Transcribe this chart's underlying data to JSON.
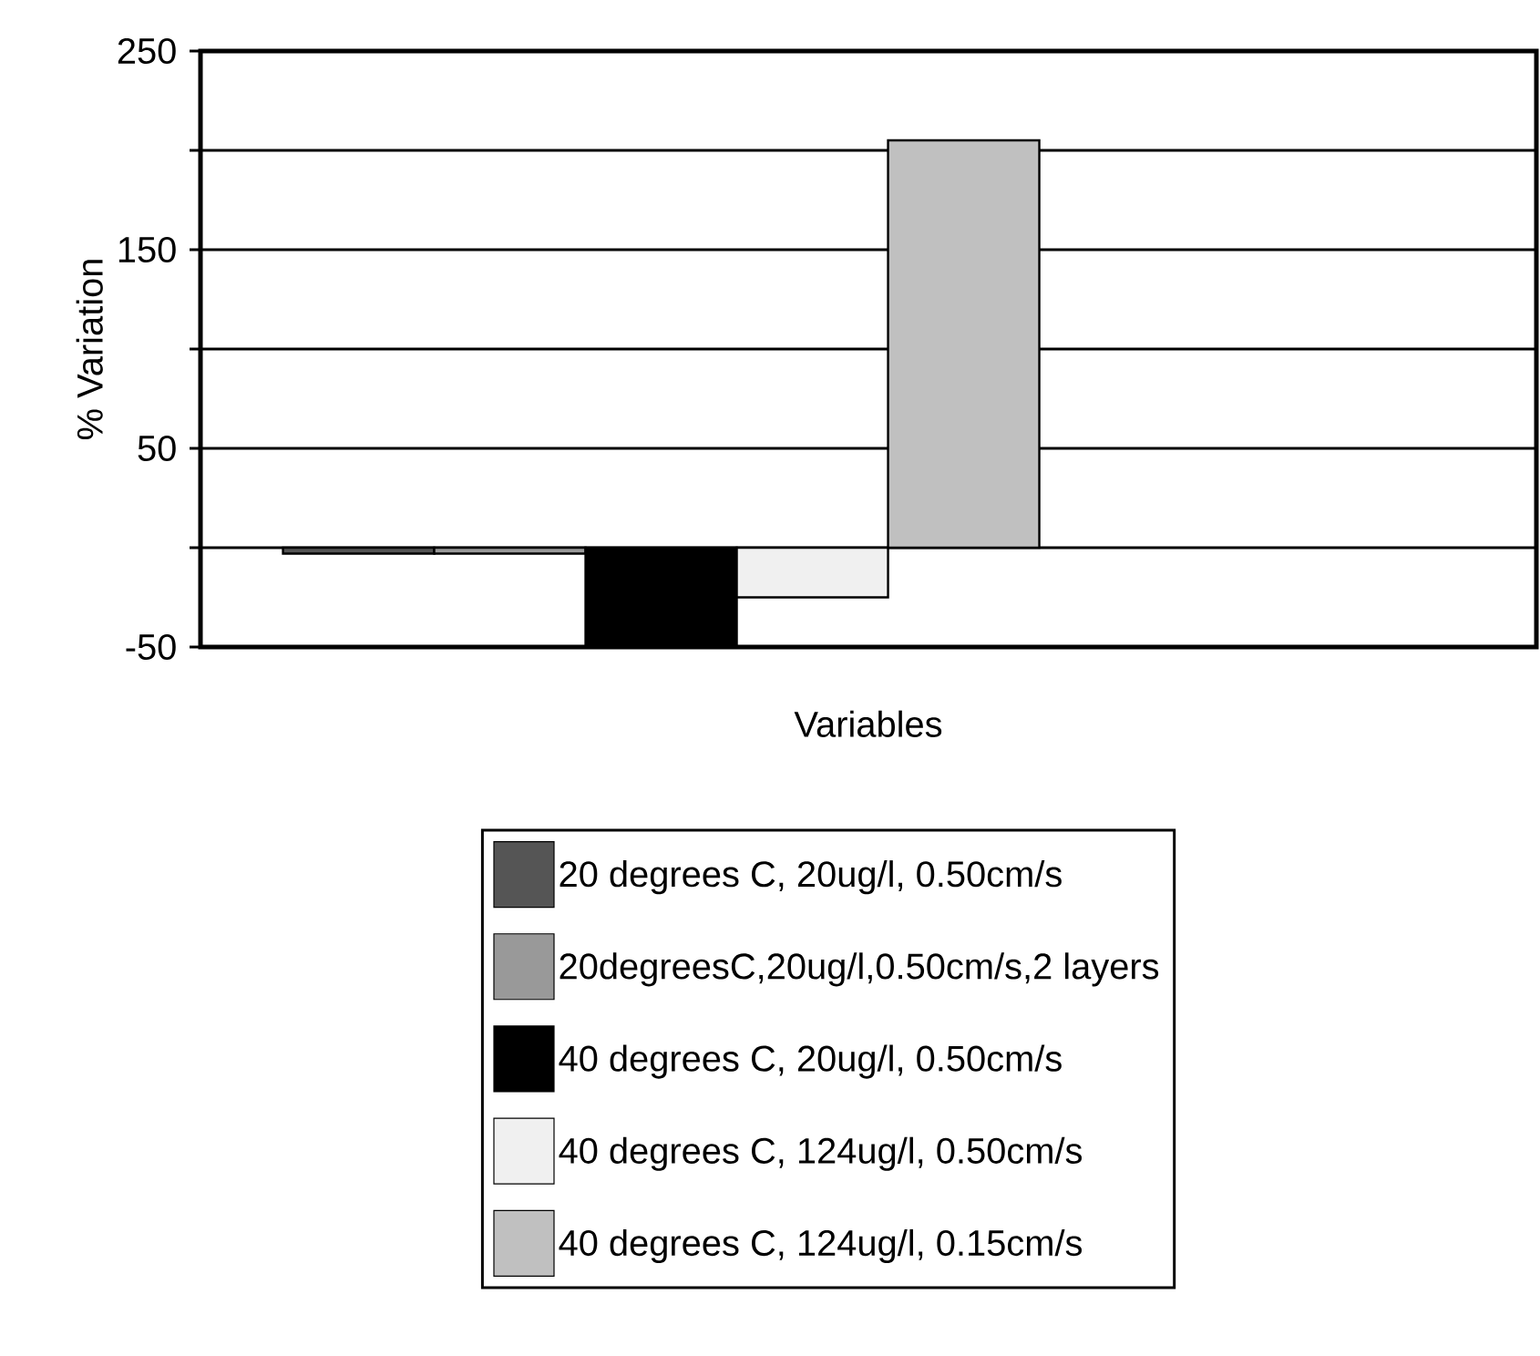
{
  "chart_data": {
    "type": "bar",
    "xlabel": "Variables",
    "ylabel": "% Variation",
    "categories": [
      null
    ],
    "series": [
      {
        "name": "20 degrees C, 20ug/l, 0.50cm/s",
        "color": "#555555",
        "values": [
          -3
        ]
      },
      {
        "name": "20degreesC,20ug/l,0.50cm/s,2 layers",
        "color": "#999999",
        "values": [
          -3
        ]
      },
      {
        "name": "40 degrees C, 20ug/l, 0.50cm/s",
        "color": "#000000",
        "values": [
          -50
        ]
      },
      {
        "name": "40 degrees C, 124ug/l, 0.50cm/s",
        "color": "#f0f0f0",
        "values": [
          -25
        ]
      },
      {
        "name": "40 degrees C, 124ug/l, 0.15cm/s",
        "color": "#c0c0c0",
        "values": [
          205
        ]
      }
    ],
    "ylim": [
      -50,
      250
    ],
    "yticks": [
      -50,
      {
        "value": 0,
        "label": null
      },
      50,
      {
        "value": 100,
        "label": null
      },
      150,
      {
        "value": 200,
        "label": null
      },
      250
    ],
    "grid": "y",
    "legend": "bottom"
  }
}
